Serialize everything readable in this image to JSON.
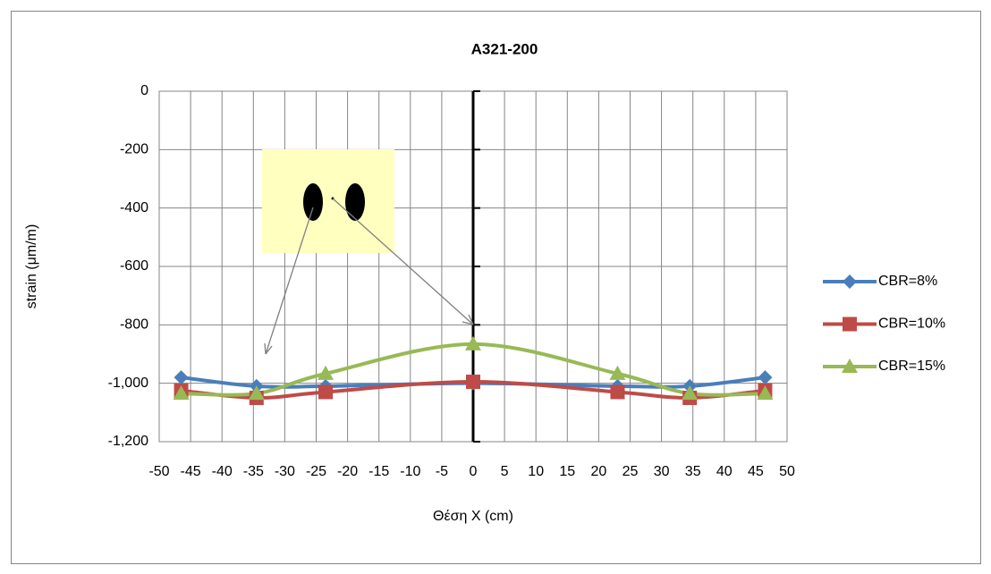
{
  "chart_data": {
    "type": "line",
    "title": "A321-200",
    "x_label": "Θέση X (cm)",
    "y_label": "strain (μm/m)",
    "x": [
      -46.5,
      -34.5,
      -23.5,
      0,
      23,
      34.5,
      46.5
    ],
    "series": [
      {
        "name": "CBR=8%",
        "color": "#4a7ebb",
        "marker": "diamond",
        "values": [
          -980,
          -1010,
          -1010,
          -1000,
          -1010,
          -1010,
          -980
        ]
      },
      {
        "name": "CBR=10%",
        "color": "#be4b48",
        "marker": "square",
        "values": [
          -1025,
          -1050,
          -1030,
          -995,
          -1030,
          -1050,
          -1025
        ]
      },
      {
        "name": "CBR=15%",
        "color": "#98b954",
        "marker": "triangle",
        "values": [
          -1035,
          -1035,
          -967,
          -866,
          -967,
          -1035,
          -1035
        ]
      }
    ],
    "xlim": [
      -50,
      50
    ],
    "xticks": [
      -50,
      -45,
      -40,
      -35,
      -30,
      -25,
      -20,
      -15,
      -10,
      -5,
      0,
      5,
      10,
      15,
      20,
      25,
      30,
      35,
      40,
      45,
      50
    ],
    "ylim": [
      -1200,
      0
    ],
    "yticks": [
      0,
      -200,
      -400,
      -600,
      -800,
      {
        "value": -1000,
        "label": "-1,000"
      },
      {
        "value": -1200,
        "label": "-1,200"
      }
    ],
    "grid": true,
    "smooth": true,
    "legend": "right"
  }
}
